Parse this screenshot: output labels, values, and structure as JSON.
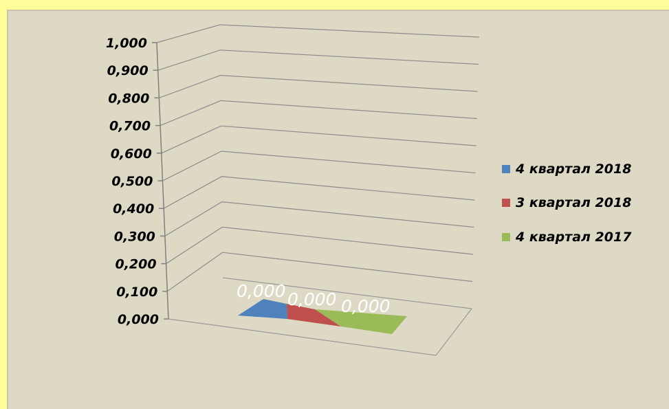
{
  "chart_data": {
    "type": "bar",
    "projection": "3d",
    "categories": [
      ""
    ],
    "series": [
      {
        "name": "4 квартал 2018",
        "values": [
          0
        ],
        "label": "0,000",
        "color": "#4f81bd"
      },
      {
        "name": "3 квартал 2018",
        "values": [
          0
        ],
        "label": "0,000",
        "color": "#c0504d"
      },
      {
        "name": "4 квартал 2017",
        "values": [
          0
        ],
        "label": "0,000",
        "color": "#9bbb59"
      }
    ],
    "ylim": [
      0,
      1
    ],
    "yticks": [
      "0,000",
      "0,100",
      "0,200",
      "0,300",
      "0,400",
      "0,500",
      "0,600",
      "0,700",
      "0,800",
      "0,900",
      "1,000"
    ],
    "grid": true,
    "legend": "right",
    "title": "",
    "xlabel": "",
    "ylabel": ""
  }
}
